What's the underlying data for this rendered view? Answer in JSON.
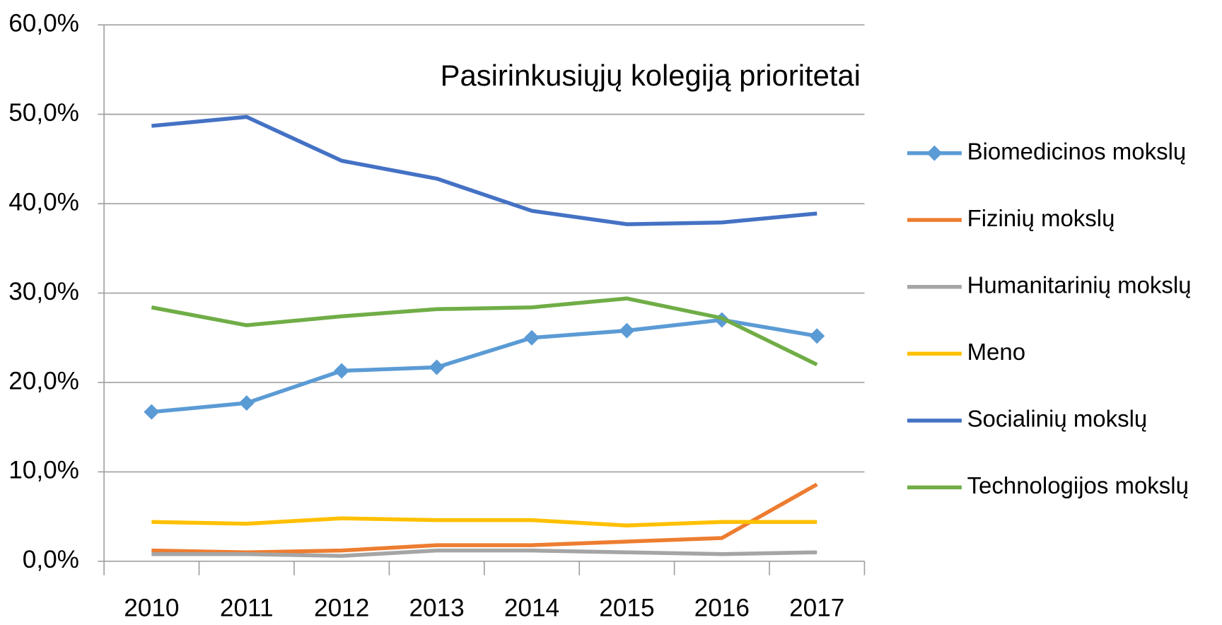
{
  "chart_data": {
    "type": "line",
    "title": "Pasirinkusiųjų kolegiją prioritetai",
    "categories": [
      "2010",
      "2011",
      "2012",
      "2013",
      "2014",
      "2015",
      "2016",
      "2017"
    ],
    "series": [
      {
        "name": "Biomedicinos mokslų",
        "color": "#5b9bd5",
        "marker": "diamond",
        "values": [
          16.7,
          17.7,
          21.3,
          21.7,
          25.0,
          25.8,
          27.0,
          25.2
        ]
      },
      {
        "name": "Fizinių mokslų",
        "color": "#ed7d31",
        "values": [
          1.2,
          1.0,
          1.2,
          1.8,
          1.8,
          2.2,
          2.6,
          8.6
        ]
      },
      {
        "name": "Humanitarinių mokslų",
        "color": "#a5a5a5",
        "values": [
          0.8,
          0.8,
          0.6,
          1.2,
          1.2,
          1.0,
          0.8,
          1.0
        ]
      },
      {
        "name": "Meno",
        "color": "#ffc000",
        "values": [
          4.4,
          4.2,
          4.8,
          4.6,
          4.6,
          4.0,
          4.4,
          4.4
        ]
      },
      {
        "name": "Socialinių mokslų",
        "color": "#4472c4",
        "values": [
          48.7,
          49.7,
          44.8,
          42.8,
          39.2,
          37.7,
          37.9,
          38.9
        ]
      },
      {
        "name": "Technologijos mokslų",
        "color": "#70ad47",
        "values": [
          28.4,
          26.4,
          27.4,
          28.2,
          28.4,
          29.4,
          27.2,
          22.0
        ]
      }
    ],
    "ylim": [
      0,
      60
    ],
    "yticks": [
      {
        "value": 0,
        "label": "0,0%"
      },
      {
        "value": 10,
        "label": "10,0%"
      },
      {
        "value": 20,
        "label": "20,0%"
      },
      {
        "value": 30,
        "label": "30,0%"
      },
      {
        "value": 40,
        "label": "40,0%"
      },
      {
        "value": 50,
        "label": "50,0%"
      },
      {
        "value": 60,
        "label": "60,0%"
      }
    ],
    "grid": true,
    "legend": "right"
  }
}
